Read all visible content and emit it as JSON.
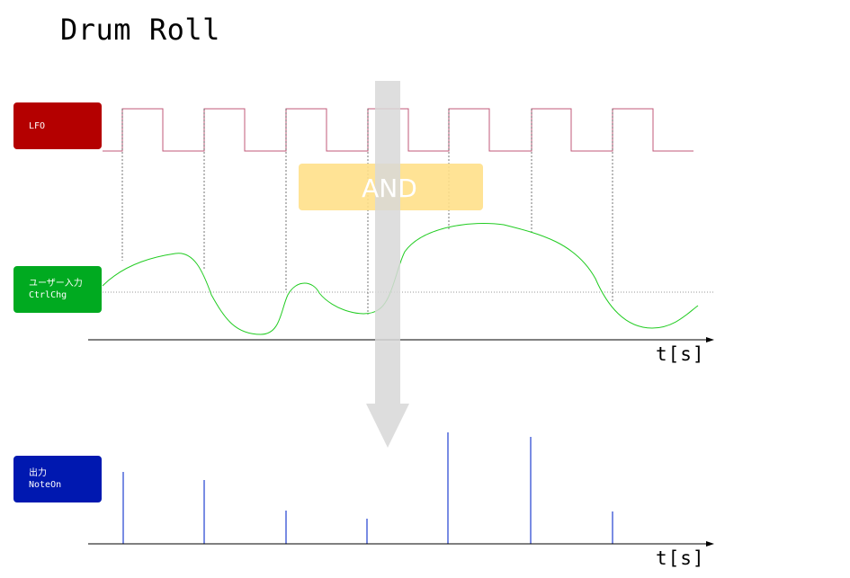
{
  "title": "Drum Roll",
  "lfo": {
    "label": "LFO",
    "color": "#b40000"
  },
  "user_input": {
    "line1": "ユーザー入力",
    "line2": "CtrlChg",
    "color": "#00aa20"
  },
  "output": {
    "line1": "出力",
    "line2": "NoteOn",
    "color": "#0018b0"
  },
  "operator": {
    "label": "AND",
    "color": "#ffe08a"
  },
  "axis": {
    "upper_label": "t[s]",
    "lower_label": "t[s]"
  },
  "pulses": [
    {
      "name": "note-pulse-1",
      "velocity": 0.73
    },
    {
      "name": "note-pulse-2",
      "velocity": 0.65
    },
    {
      "name": "note-pulse-3",
      "velocity": 0.33
    },
    {
      "name": "note-pulse-4",
      "velocity": 0.25
    },
    {
      "name": "note-pulse-5",
      "velocity": 1.0
    },
    {
      "name": "note-pulse-6",
      "velocity": 0.96
    },
    {
      "name": "note-pulse-7",
      "velocity": 0.32
    }
  ]
}
